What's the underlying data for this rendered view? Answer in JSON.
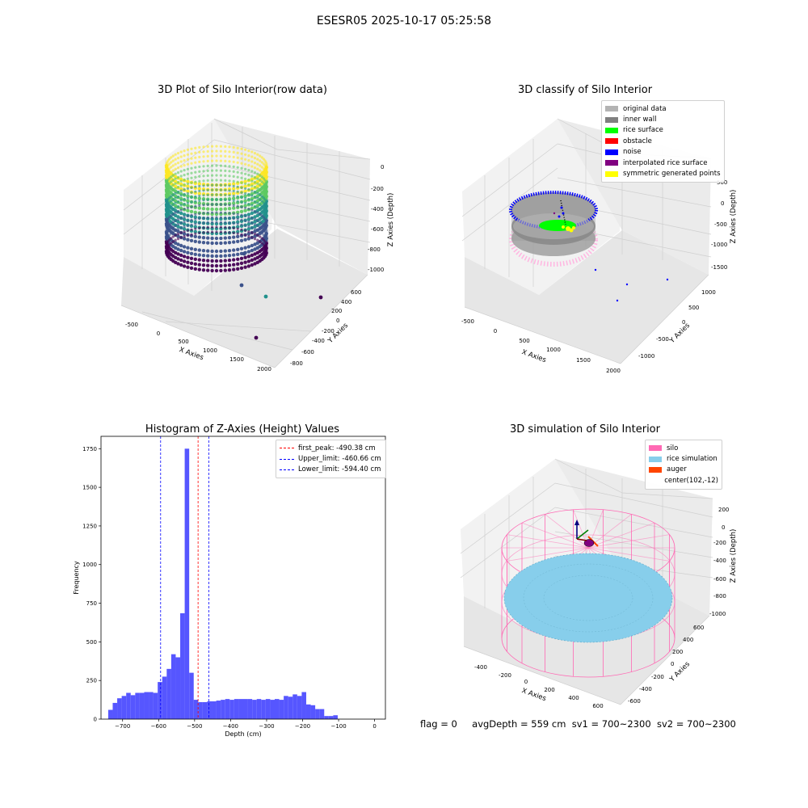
{
  "figure": {
    "suptitle": "ESESR05 2025-10-17 05:25:58",
    "status": {
      "flag": "flag = 0",
      "avg_depth": "avgDepth = 559 cm",
      "sv1": "sv1 = 700~2300",
      "sv2": "sv2 = 700~2300"
    }
  },
  "chart_data": [
    {
      "type": "scatter",
      "projection": "3d",
      "title": "3D Plot of Silo Interior(row data)",
      "xlabel": "X Axies",
      "ylabel": "Y Axies",
      "zlabel": "Z Axies (Depth)",
      "xticks": [
        "-500",
        "0",
        "500",
        "1000",
        "1500",
        "2000"
      ],
      "yticks": [
        "-800",
        "-600",
        "-400",
        "-200",
        "0",
        "200",
        "400",
        "600"
      ],
      "zticks": [
        "-1000",
        "-800",
        "-600",
        "-400",
        "-200",
        "0"
      ],
      "colormap": "viridis",
      "outlier_points": [
        {
          "x": 1500,
          "y": -600,
          "z": -1000
        },
        {
          "x": 2000,
          "y": 200,
          "z": -1000
        },
        {
          "x": 1200,
          "y": 100,
          "z": -900
        },
        {
          "x": 900,
          "y": 0,
          "z": -850
        }
      ]
    },
    {
      "type": "scatter",
      "projection": "3d",
      "title": "3D classify of Silo Interior",
      "xlabel": "X Axies",
      "ylabel": "Y Axies",
      "zlabel": "Z Axies (Depth)",
      "xticks": [
        "-500",
        "0",
        "500",
        "1000",
        "1500",
        "2000"
      ],
      "yticks": [
        "-1000",
        "-500",
        "0",
        "500",
        "1000"
      ],
      "zticks": [
        "-1500",
        "-1000",
        "-500",
        "0",
        "500"
      ],
      "legend": [
        {
          "label": "original data",
          "color": "#b3b3b3"
        },
        {
          "label": "inner wall",
          "color": "#808080"
        },
        {
          "label": "rice surface",
          "color": "#00ff00"
        },
        {
          "label": "obstacle",
          "color": "#ff0000"
        },
        {
          "label": "noise",
          "color": "#0000ff"
        },
        {
          "label": "interpolated rice surface",
          "color": "#800080"
        },
        {
          "label": "symmetric generated points",
          "color": "#ffff00"
        }
      ],
      "legend_position": "upper right"
    },
    {
      "type": "bar",
      "subtype": "histogram",
      "title": "Histogram of Z-Axies (Height) Values",
      "xlabel": "Depth (cm)",
      "ylabel": "Frequency",
      "xlim": [
        -760,
        30
      ],
      "ylim": [
        0,
        1830
      ],
      "xticks": [
        -700,
        -600,
        -500,
        -400,
        -300,
        -200,
        -100,
        0
      ],
      "yticks": [
        0,
        250,
        500,
        750,
        1000,
        1250,
        1500,
        1750
      ],
      "bar_color": "#4444ff",
      "bin_edges_start": -740,
      "bin_width": 12.5,
      "values": [
        60,
        105,
        135,
        150,
        170,
        155,
        170,
        170,
        175,
        175,
        170,
        240,
        275,
        325,
        420,
        400,
        685,
        1750,
        300,
        125,
        110,
        110,
        115,
        115,
        120,
        125,
        130,
        125,
        130,
        130,
        130,
        130,
        125,
        130,
        125,
        130,
        125,
        130,
        125,
        150,
        145,
        160,
        150,
        175,
        95,
        90,
        65,
        65,
        20,
        20,
        25
      ],
      "lines": [
        {
          "label": "first_peak: -490.38 cm",
          "x": -490.38,
          "color": "#ff0000"
        },
        {
          "label": "Upper_limit: -460.66 cm",
          "x": -460.66,
          "color": "#0000ff"
        },
        {
          "label": "Lower_limit: -594.40 cm",
          "x": -594.4,
          "color": "#0000ff"
        }
      ],
      "legend_position": "upper right"
    },
    {
      "type": "scatter",
      "projection": "3d",
      "title": "3D simulation of Silo Interior",
      "xlabel": "X Axies",
      "ylabel": "Y Axies",
      "zlabel": "Z Axies (Depth)",
      "xticks": [
        "-400",
        "-200",
        "0",
        "200",
        "400",
        "600"
      ],
      "yticks": [
        "-600",
        "-400",
        "-200",
        "0",
        "200",
        "400",
        "600"
      ],
      "zticks": [
        "-1000",
        "-800",
        "-600",
        "-400",
        "-200",
        "0",
        "200"
      ],
      "legend": [
        {
          "label": "silo",
          "color": "#ff69b4"
        },
        {
          "label": "rice simulation",
          "color": "#87ceeb"
        },
        {
          "label": "auger",
          "color": "#ff4500"
        },
        {
          "label": "center(102,-12)",
          "color": ""
        }
      ],
      "legend_position": "upper right"
    }
  ]
}
